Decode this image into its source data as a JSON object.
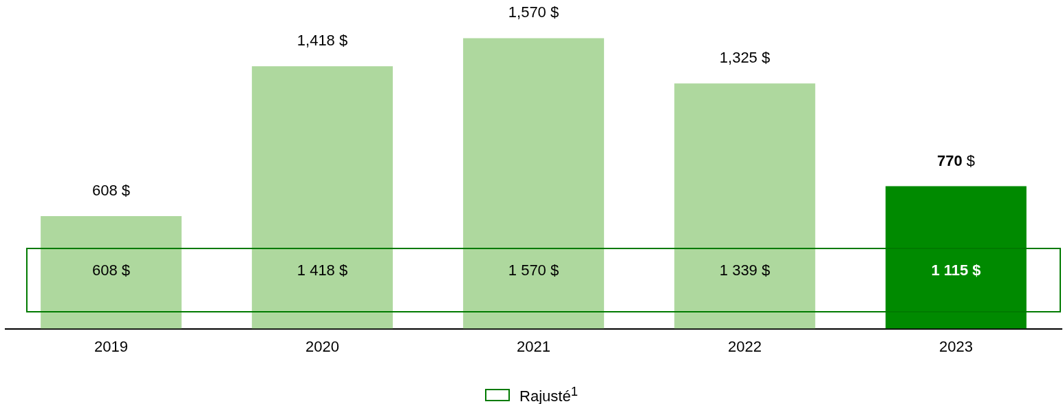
{
  "chart_data": {
    "type": "bar",
    "categories": [
      "2019",
      "2020",
      "2021",
      "2022",
      "2023"
    ],
    "values": [
      608,
      1418,
      1570,
      1325,
      770
    ],
    "colors": [
      "#aed89e",
      "#aed89e",
      "#aed89e",
      "#aed89e",
      "#008a00"
    ],
    "value_labels": [
      "608 $",
      "1,418 $",
      "1,570 $",
      "1,325 $",
      "770 $"
    ],
    "ylim": [
      0,
      1776
    ],
    "grid": false,
    "legend_title": "Rajusté$^{1}$",
    "annotations": [
      "608 $",
      "1 418 $",
      "1 570 $",
      "1 339 $",
      "1 115 $"
    ]
  }
}
